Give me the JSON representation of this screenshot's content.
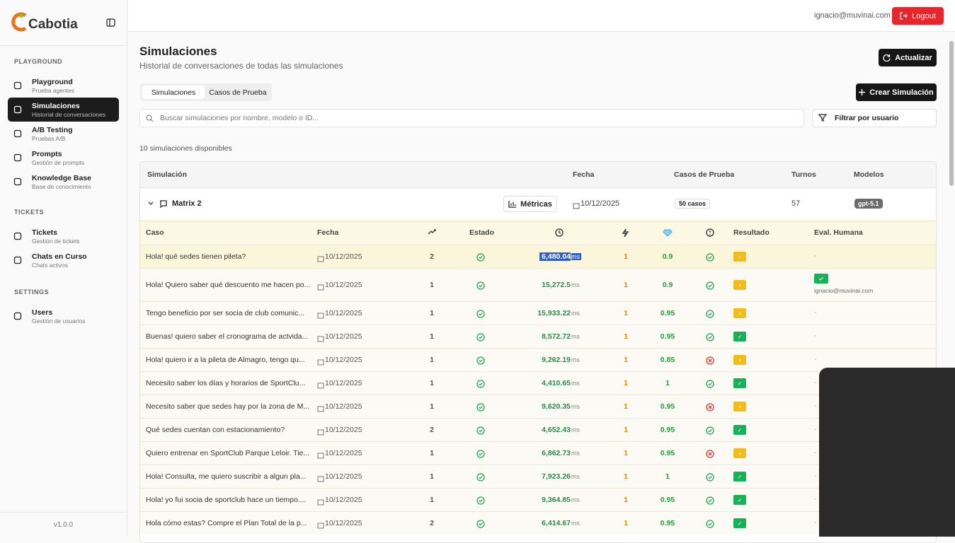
{
  "sidebar": {
    "logo": "Cabotia",
    "sections": [
      {
        "title": "PLAYGROUND",
        "items": [
          {
            "label": "Playground",
            "sub": "Prueba agentes"
          },
          {
            "label": "Simulaciones",
            "sub": "Historial de conversaciones",
            "active": true
          },
          {
            "label": "A/B Testing",
            "sub": "Pruebas A/B"
          },
          {
            "label": "Prompts",
            "sub": "Gestión de prompts"
          },
          {
            "label": "Knowledge Base",
            "sub": "Base de conocimiento"
          }
        ]
      },
      {
        "title": "TICKETS",
        "items": [
          {
            "label": "Tickets",
            "sub": "Gestión de tickets"
          },
          {
            "label": "Chats en Curso",
            "sub": "Chats activos"
          }
        ]
      },
      {
        "title": "SETTINGS",
        "items": [
          {
            "label": "Users",
            "sub": "Gestión de usuarios"
          }
        ]
      }
    ],
    "version": "v1.0.0"
  },
  "header": {
    "email": "ignacio@muvinai.com",
    "logout": "Logout"
  },
  "page": {
    "title": "Simulaciones",
    "subtitle": "Historial de conversaciones de todas las simulaciones",
    "refresh": "Actualizar",
    "tabs": [
      "Simulaciones",
      "Casos de Prueba"
    ],
    "create": "Crear Simulación",
    "search_placeholder": "Buscar simulaciones por nombre, modelo o ID...",
    "filter": "Filtrar por usuario",
    "count": "10 simulaciones disponibles"
  },
  "table": {
    "columns": [
      "Simulación",
      "Fecha",
      "Casos de Prueba",
      "Turnos",
      "Modelos"
    ],
    "simulation": {
      "name": "Matrix 2",
      "metrics": "Métricas",
      "date": "10/12/2025",
      "cases": "50 casos",
      "turns": "57",
      "model": "gpt-5.1"
    },
    "case_columns": {
      "case": "Caso",
      "date": "Fecha",
      "state": "Estado",
      "result": "Resultado",
      "eval": "Eval. Humana"
    },
    "latency_unit": "ms",
    "cases": [
      {
        "case": "Hola! qué sedes tienen pileta?",
        "date": "10/12/2025",
        "turns": "2",
        "latency": "6,480.04",
        "tools": "1",
        "score": "0.9",
        "status": "ok",
        "result": "pending",
        "eval": "-"
      },
      {
        "case": "Hola! Quiero saber qué descuento me hacen po...",
        "date": "10/12/2025",
        "turns": "1",
        "latency": "15,272.5",
        "tools": "1",
        "score": "0.9",
        "status": "ok",
        "result": "pending",
        "eval": "ignacio@muvinai.com",
        "eval_status": "pass"
      },
      {
        "case": "Tengo beneficio por ser socia de club comunic...",
        "date": "10/12/2025",
        "turns": "1",
        "latency": "15,933.22",
        "tools": "1",
        "score": "0.95",
        "status": "ok",
        "result": "pending",
        "eval": "-"
      },
      {
        "case": "Buenas! quiero saber el cronograma de actvida...",
        "date": "10/12/2025",
        "turns": "1",
        "latency": "8,572.72",
        "tools": "1",
        "score": "0.95",
        "status": "ok",
        "result": "pass",
        "eval": "-"
      },
      {
        "case": "Hola! quiero ir a la pileta de Almagro, tengo qu...",
        "date": "10/12/2025",
        "turns": "1",
        "latency": "9,262.19",
        "tools": "1",
        "score": "0.85",
        "status": "error",
        "result": "pending",
        "eval": "-"
      },
      {
        "case": "Necesito saber los días y horarios de SportClu...",
        "date": "10/12/2025",
        "turns": "1",
        "latency": "4,410.65",
        "tools": "1",
        "score": "1",
        "status": "ok",
        "result": "pass",
        "eval": "-"
      },
      {
        "case": "Necesito saber que sedes hay por la zona de M...",
        "date": "10/12/2025",
        "turns": "1",
        "latency": "9,620.35",
        "tools": "1",
        "score": "0.95",
        "status": "error",
        "result": "pending",
        "eval": "-"
      },
      {
        "case": "Qué sedes cuentan con estacionamiento?",
        "date": "10/12/2025",
        "turns": "2",
        "latency": "4,652.43",
        "tools": "1",
        "score": "0.95",
        "status": "ok",
        "result": "pass",
        "eval": "-"
      },
      {
        "case": "Quiero entrenar en SportClub Parque Leloir. Tie...",
        "date": "10/12/2025",
        "turns": "1",
        "latency": "6,862.73",
        "tools": "1",
        "score": "0.95",
        "status": "error",
        "result": "pending",
        "eval": "-"
      },
      {
        "case": "Hola! Consulta, me quiero suscribir a algun pla...",
        "date": "10/12/2025",
        "turns": "1",
        "latency": "7,923.26",
        "tools": "1",
        "score": "1",
        "status": "ok",
        "result": "pass",
        "eval": "-"
      },
      {
        "case": "Hola! yo fui socia de sportclub hace un tiempo....",
        "date": "10/12/2025",
        "turns": "1",
        "latency": "9,364.85",
        "tools": "1",
        "score": "0.95",
        "status": "ok",
        "result": "pass",
        "eval": "-"
      },
      {
        "case": "Hola cómo estas? Compre el Plan Total de la p...",
        "date": "10/12/2025",
        "turns": "2",
        "latency": "6,414.67",
        "tools": "1",
        "score": "0.95",
        "status": "ok",
        "result": "pass",
        "eval": "-"
      }
    ]
  }
}
